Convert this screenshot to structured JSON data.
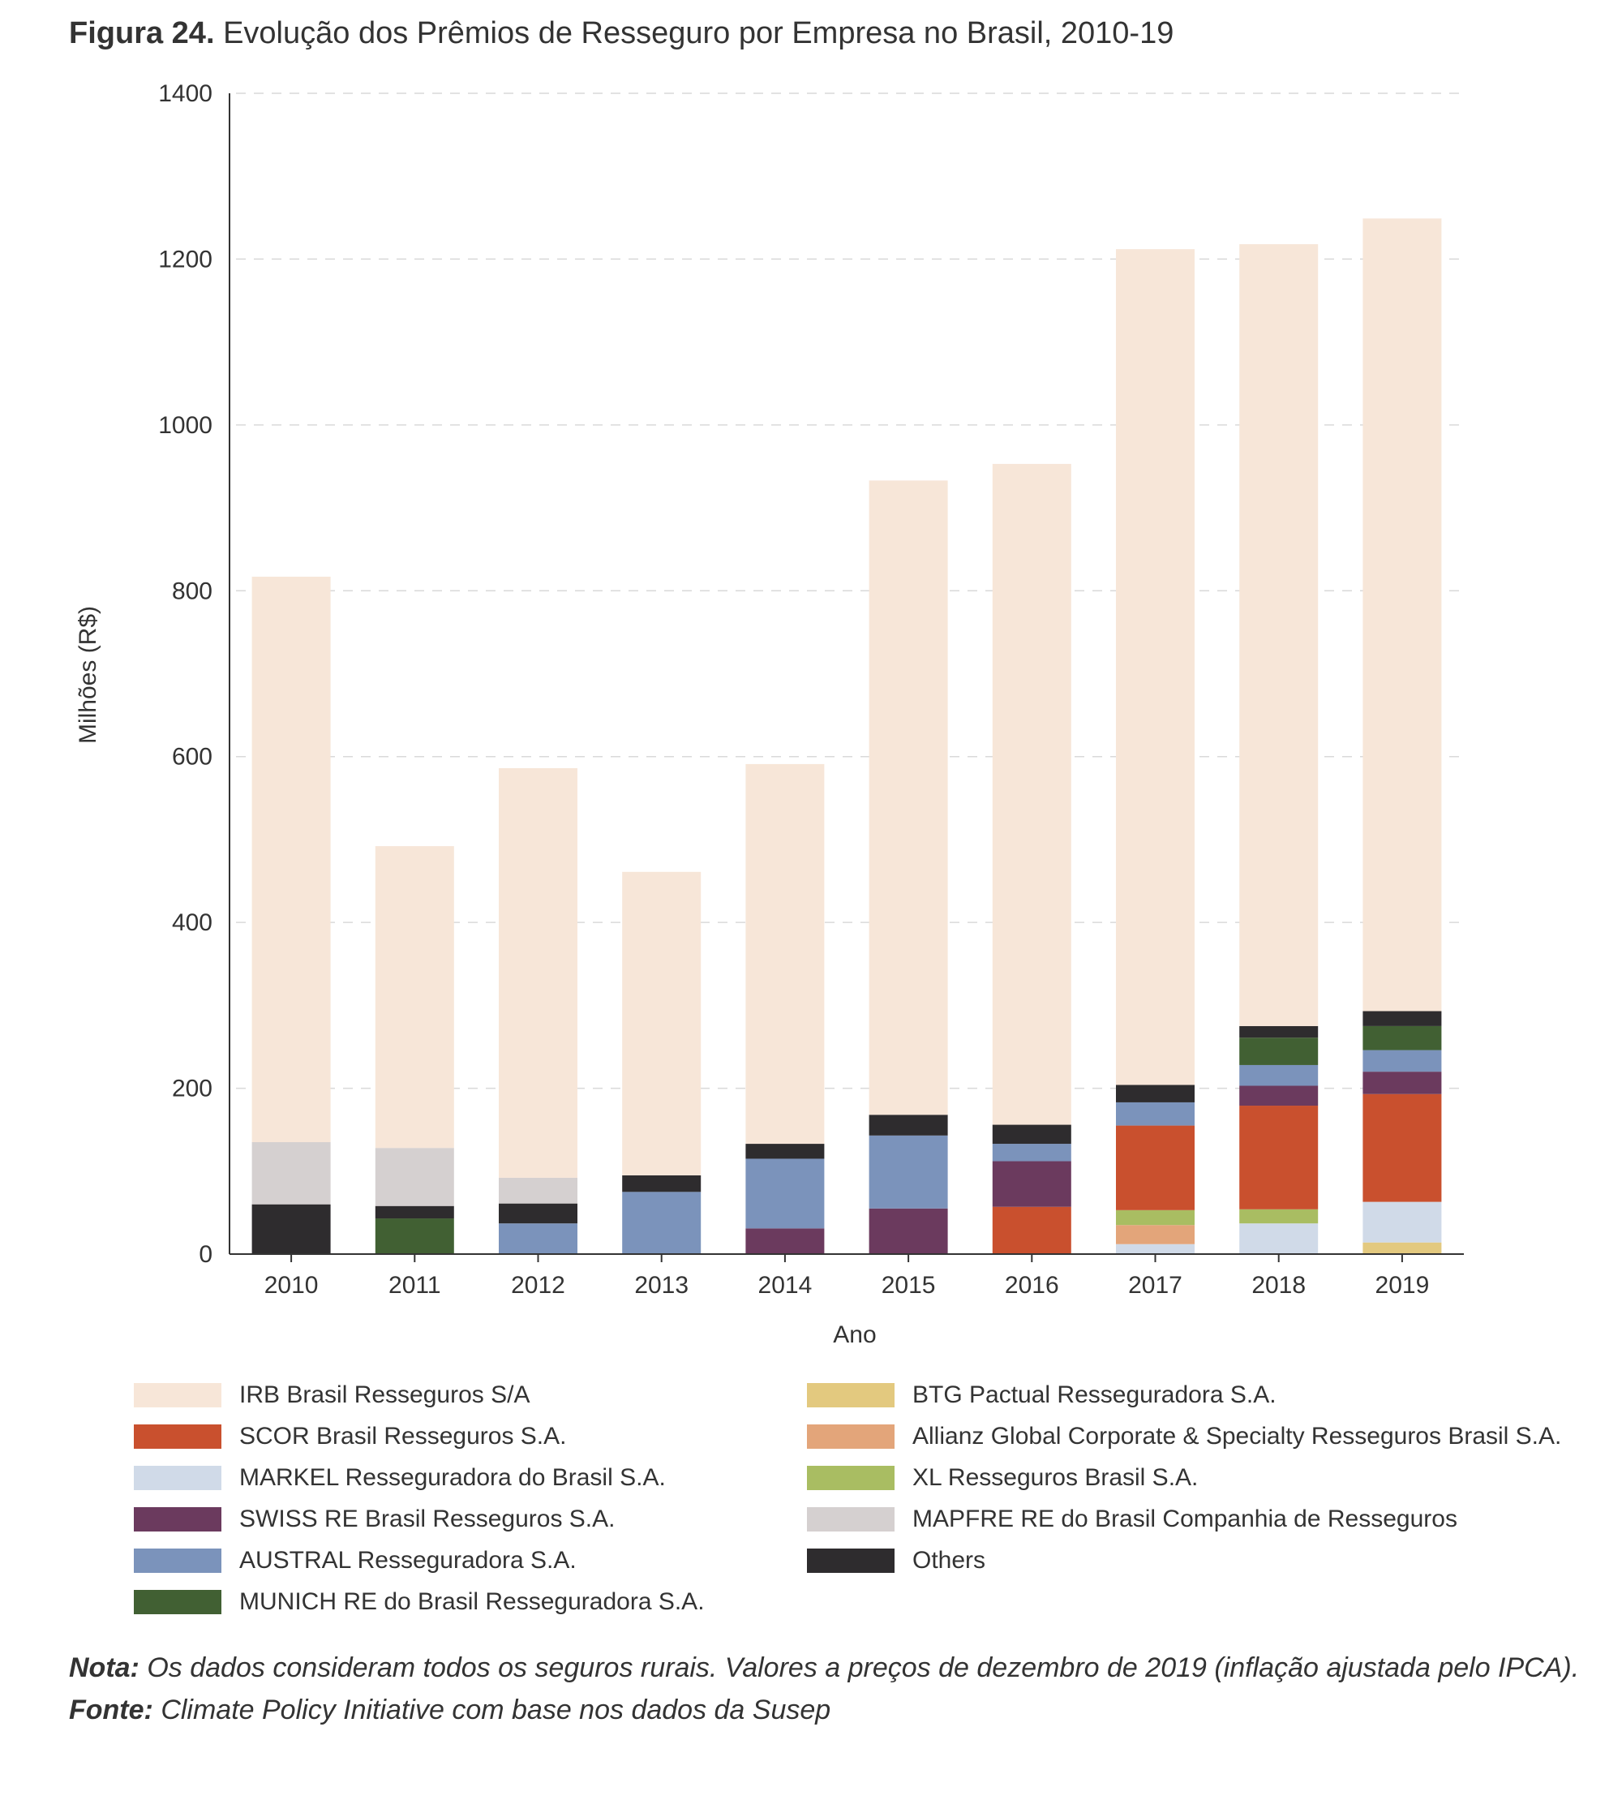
{
  "figure": {
    "title_prefix": "Figura 24.",
    "title": "Evolução dos Prêmios de Resseguro por Empresa no Brasil, 2010-19"
  },
  "chart_data": {
    "type": "bar",
    "stacked": true,
    "xlabel": "Ano",
    "ylabel": "Milhões (R$)",
    "ylim": [
      0,
      1400
    ],
    "yticks": [
      0,
      200,
      400,
      600,
      800,
      1000,
      1200,
      1400
    ],
    "grid": true,
    "legend_position": "bottom",
    "categories": [
      "2010",
      "2011",
      "2012",
      "2013",
      "2014",
      "2015",
      "2016",
      "2017",
      "2018",
      "2019"
    ],
    "series": [
      {
        "name": "BTG Pactual Resseguradora S.A.",
        "color": "#e3c97f",
        "values": [
          0,
          0,
          0,
          0,
          0,
          0,
          0,
          0,
          0,
          14
        ]
      },
      {
        "name": "MARKEL Resseguradora do Brasil S.A.",
        "color": "#d0dae8",
        "values": [
          0,
          0,
          0,
          0,
          0,
          0,
          0,
          12,
          37,
          49
        ]
      },
      {
        "name": "Allianz Global Corporate & Specialty Resseguros Brasil S.A.",
        "color": "#e3a57a",
        "values": [
          0,
          0,
          0,
          0,
          0,
          0,
          0,
          23,
          0,
          0
        ]
      },
      {
        "name": "XL Resseguros Brasil S.A.",
        "color": "#a9bd62",
        "values": [
          0,
          0,
          0,
          0,
          0,
          0,
          0,
          18,
          17,
          0
        ]
      },
      {
        "name": "SCOR Brasil Resseguros S.A.",
        "color": "#c9502e",
        "values": [
          0,
          0,
          0,
          0,
          0,
          0,
          57,
          102,
          125,
          130
        ]
      },
      {
        "name": "SWISS RE Brasil Resseguros S.A.",
        "color": "#6b3a5e",
        "values": [
          0,
          0,
          0,
          0,
          31,
          55,
          55,
          0,
          24,
          27
        ]
      },
      {
        "name": "AUSTRAL Resseguradora S.A.",
        "color": "#7b93bb",
        "values": [
          0,
          0,
          37,
          75,
          84,
          88,
          21,
          28,
          25,
          26
        ]
      },
      {
        "name": "MUNICH RE do Brasil Resseguradora S.A.",
        "color": "#416033",
        "values": [
          0,
          43,
          0,
          0,
          0,
          0,
          0,
          0,
          33,
          29
        ]
      },
      {
        "name": "Others",
        "color": "#2e2c2e",
        "values": [
          60,
          15,
          24,
          20,
          18,
          25,
          23,
          21,
          14,
          18
        ]
      },
      {
        "name": "MAPFRE RE do Brasil Companhia de Resseguros",
        "color": "#d5d0d0",
        "values": [
          75,
          70,
          31,
          0,
          0,
          0,
          0,
          0,
          0,
          0
        ]
      },
      {
        "name": "IRB Brasil Resseguros S/A",
        "color": "#f7e6d8",
        "values": [
          682,
          364,
          494,
          366,
          458,
          765,
          797,
          1008,
          943,
          956
        ]
      }
    ]
  },
  "legend": {
    "left": [
      {
        "label": "IRB Brasil Resseguros S/A",
        "color": "#f7e6d8"
      },
      {
        "label": "SCOR Brasil Resseguros S.A.",
        "color": "#c9502e"
      },
      {
        "label": "MARKEL Resseguradora do Brasil S.A.",
        "color": "#d0dae8"
      },
      {
        "label": "SWISS RE Brasil Resseguros S.A.",
        "color": "#6b3a5e"
      },
      {
        "label": "AUSTRAL Resseguradora S.A.",
        "color": "#7b93bb"
      },
      {
        "label": "MUNICH RE do Brasil Resseguradora S.A.",
        "color": "#416033"
      }
    ],
    "right": [
      {
        "label": "BTG Pactual Resseguradora S.A.",
        "color": "#e3c97f"
      },
      {
        "label": "Allianz Global Corporate & Specialty Resseguros Brasil S.A.",
        "color": "#e3a57a"
      },
      {
        "label": "XL Resseguros Brasil S.A.",
        "color": "#a9bd62"
      },
      {
        "label": "MAPFRE RE do Brasil Companhia de Resseguros",
        "color": "#d5d0d0"
      },
      {
        "label": "Others",
        "color": "#2e2c2e"
      }
    ]
  },
  "notes": {
    "nota_label": "Nota:",
    "nota_text": "Os dados consideram todos os seguros rurais. Valores a preços de dezembro de 2019 (inflação ajustada pelo IPCA).",
    "fonte_label": "Fonte:",
    "fonte_text": "Climate Policy Initiative com base nos dados da Susep"
  }
}
